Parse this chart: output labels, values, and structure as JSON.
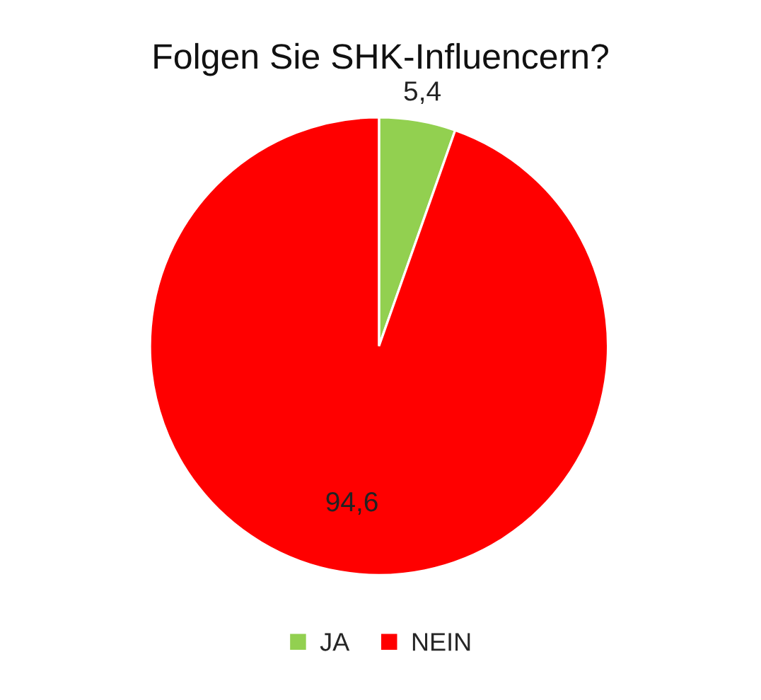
{
  "chart_data": {
    "type": "pie",
    "title": "Folgen Sie SHK-Influencern?",
    "categories": [
      "JA",
      "NEIN"
    ],
    "values": [
      5.4,
      94.6
    ],
    "colors": [
      "#92d050",
      "#ff0000"
    ],
    "value_labels": [
      "5,4",
      "94,6"
    ],
    "legend": "bottom"
  }
}
